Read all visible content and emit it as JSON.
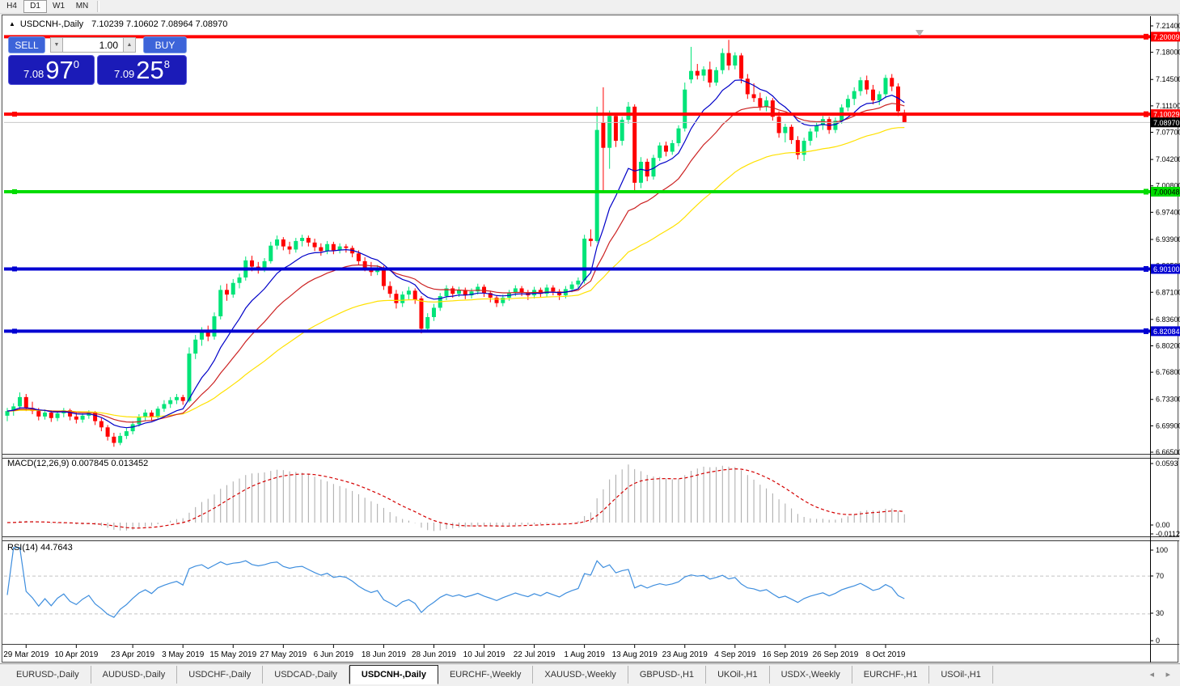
{
  "toolbar": {
    "timeframes": [
      {
        "label": "H4",
        "active": false
      },
      {
        "label": "D1",
        "active": true
      },
      {
        "label": "W1",
        "active": false
      },
      {
        "label": "MN",
        "active": false
      }
    ]
  },
  "chart": {
    "collapse_icon": "▲",
    "title_symbol": "USDCNH-,Daily",
    "title_ohlc": "7.10239 7.10602 7.08964 7.08970",
    "one_click": {
      "sell_label": "SELL",
      "buy_label": "BUY",
      "volume": "1.00",
      "spin_down_icon": "▼",
      "spin_up_icon": "▲",
      "sell_small": "7.08",
      "sell_big": "97",
      "sell_sup": "0",
      "buy_small": "7.09",
      "buy_big": "25",
      "buy_sup": "8"
    }
  },
  "chart_data": {
    "type": "candlestick",
    "symbol": "USDCNH-",
    "timeframe": "Daily",
    "current_ohlc": {
      "open": 7.10239,
      "high": 7.10602,
      "low": 7.08964,
      "close": 7.0897
    },
    "price_axis": {
      "max": 7.214,
      "min": 6.665,
      "ticks": [
        7.214,
        7.18,
        7.145,
        7.111,
        7.077,
        7.042,
        7.008,
        6.974,
        6.939,
        6.905,
        6.871,
        6.836,
        6.802,
        6.768,
        6.733,
        6.699,
        6.665
      ]
    },
    "hlines": [
      {
        "price": 7.20009,
        "color": "#FF0000",
        "thickness": 4,
        "label": "7.20009",
        "text": "#FFFFFF",
        "left_marker": false
      },
      {
        "price": 7.10029,
        "color": "#FF0000",
        "thickness": 4,
        "label": "7.10029",
        "text": "#FFFFFF",
        "left_marker": true
      },
      {
        "price": 7.0897,
        "color": "#C8C8C8",
        "thickness": 1,
        "label": "7.08970",
        "box": "#000000",
        "text": "#FFFFFF",
        "left_marker": false,
        "is_price_line": true
      },
      {
        "price": 7.00048,
        "color": "#00DC00",
        "thickness": 4,
        "label": "7.00048",
        "text": "#000000",
        "left_marker": true
      },
      {
        "price": 6.901,
        "color": "#0000D2",
        "thickness": 4,
        "label": "6.90100",
        "text": "#FFFFFF",
        "left_marker": true
      },
      {
        "price": 6.82084,
        "color": "#0000D2",
        "thickness": 4,
        "label": "6.82084",
        "text": "#FFFFFF",
        "left_marker": true
      }
    ],
    "colors": {
      "bull": "#00E478",
      "bear": "#FF0000",
      "ma_fast": "#0000C8",
      "ma_mid": "#CC2222",
      "ma_slow": "#FFE100",
      "macd_hist": "#A8A8A8",
      "macd_signal": "#D40000",
      "rsi_line": "#3E8EDE"
    },
    "ma_periods": [
      10,
      20,
      45
    ],
    "x_labels": [
      {
        "i": 3,
        "label": "29 Mar 2019"
      },
      {
        "i": 11,
        "label": "10 Apr 2019"
      },
      {
        "i": 20,
        "label": "23 Apr 2019"
      },
      {
        "i": 28,
        "label": "3 May 2019"
      },
      {
        "i": 36,
        "label": "15 May 2019"
      },
      {
        "i": 44,
        "label": "27 May 2019"
      },
      {
        "i": 52,
        "label": "6 Jun 2019"
      },
      {
        "i": 60,
        "label": "18 Jun 2019"
      },
      {
        "i": 68,
        "label": "28 Jun 2019"
      },
      {
        "i": 76,
        "label": "10 Jul 2019"
      },
      {
        "i": 84,
        "label": "22 Jul 2019"
      },
      {
        "i": 92,
        "label": "1 Aug 2019"
      },
      {
        "i": 100,
        "label": "13 Aug 2019"
      },
      {
        "i": 108,
        "label": "23 Aug 2019"
      },
      {
        "i": 116,
        "label": "4 Sep 2019"
      },
      {
        "i": 124,
        "label": "16 Sep 2019"
      },
      {
        "i": 132,
        "label": "26 Sep 2019"
      },
      {
        "i": 140,
        "label": "8 Oct 2019"
      }
    ],
    "macd": {
      "label": "MACD(12,26,9) 0.007845 0.013452",
      "fast": 12,
      "slow": 26,
      "signal_period": 9,
      "value": 0.007845,
      "signal_value": 0.013452,
      "axis": [
        "0.0593",
        "0.00",
        "-0.01128"
      ]
    },
    "rsi": {
      "label": "RSI(14) 44.7643",
      "period": 14,
      "value": 44.7643,
      "axis": [
        "100",
        "70",
        "30",
        "0"
      ],
      "levels": [
        70,
        30
      ]
    },
    "candles": [
      [
        6.712,
        6.722,
        6.705,
        6.718
      ],
      [
        6.718,
        6.728,
        6.712,
        6.724
      ],
      [
        6.724,
        6.742,
        6.72,
        6.736
      ],
      [
        6.736,
        6.74,
        6.718,
        6.722
      ],
      [
        6.722,
        6.73,
        6.714,
        6.718
      ],
      [
        6.718,
        6.722,
        6.706,
        6.711
      ],
      [
        6.711,
        6.72,
        6.707,
        6.716
      ],
      [
        6.716,
        6.719,
        6.704,
        6.709
      ],
      [
        6.709,
        6.718,
        6.705,
        6.715
      ],
      [
        6.715,
        6.722,
        6.71,
        6.719
      ],
      [
        6.719,
        6.721,
        6.706,
        6.711
      ],
      [
        6.711,
        6.716,
        6.702,
        6.707
      ],
      [
        6.707,
        6.715,
        6.703,
        6.712
      ],
      [
        6.712,
        6.719,
        6.708,
        6.716
      ],
      [
        6.716,
        6.718,
        6.7,
        6.705
      ],
      [
        6.705,
        6.709,
        6.692,
        6.697
      ],
      [
        6.697,
        6.7,
        6.68,
        6.685
      ],
      [
        6.685,
        6.69,
        6.672,
        6.677
      ],
      [
        6.677,
        6.69,
        6.674,
        6.686
      ],
      [
        6.686,
        6.696,
        6.682,
        6.692
      ],
      [
        6.692,
        6.705,
        6.688,
        6.701
      ],
      [
        6.701,
        6.714,
        6.698,
        6.71
      ],
      [
        6.71,
        6.72,
        6.706,
        6.716
      ],
      [
        6.716,
        6.719,
        6.705,
        6.71
      ],
      [
        6.71,
        6.724,
        6.707,
        6.721
      ],
      [
        6.721,
        6.732,
        6.717,
        6.727
      ],
      [
        6.727,
        6.736,
        6.722,
        6.732
      ],
      [
        6.732,
        6.74,
        6.727,
        6.736
      ],
      [
        6.736,
        6.739,
        6.726,
        6.731
      ],
      [
        6.731,
        6.8,
        6.729,
        6.792
      ],
      [
        6.792,
        6.816,
        6.785,
        6.81
      ],
      [
        6.81,
        6.826,
        6.802,
        6.821
      ],
      [
        6.821,
        6.828,
        6.808,
        6.814
      ],
      [
        6.814,
        6.845,
        6.81,
        6.84
      ],
      [
        6.84,
        6.88,
        6.836,
        6.874
      ],
      [
        6.874,
        6.882,
        6.86,
        6.868
      ],
      [
        6.868,
        6.888,
        6.864,
        6.883
      ],
      [
        6.883,
        6.895,
        6.876,
        6.89
      ],
      [
        6.89,
        6.917,
        6.886,
        6.912
      ],
      [
        6.912,
        6.918,
        6.898,
        6.904
      ],
      [
        6.904,
        6.91,
        6.895,
        6.901
      ],
      [
        6.901,
        6.915,
        6.897,
        6.911
      ],
      [
        6.911,
        6.936,
        6.908,
        6.931
      ],
      [
        6.931,
        6.944,
        6.926,
        6.939
      ],
      [
        6.939,
        6.942,
        6.925,
        6.93
      ],
      [
        6.93,
        6.936,
        6.92,
        6.926
      ],
      [
        6.926,
        6.941,
        6.922,
        6.937
      ],
      [
        6.937,
        6.945,
        6.93,
        6.941
      ],
      [
        6.941,
        6.944,
        6.93,
        6.935
      ],
      [
        6.935,
        6.94,
        6.924,
        6.929
      ],
      [
        6.929,
        6.934,
        6.918,
        6.924
      ],
      [
        6.924,
        6.937,
        6.92,
        6.933
      ],
      [
        6.933,
        6.936,
        6.92,
        6.925
      ],
      [
        6.925,
        6.934,
        6.921,
        6.93
      ],
      [
        6.93,
        6.933,
        6.922,
        6.928
      ],
      [
        6.928,
        6.931,
        6.916,
        6.921
      ],
      [
        6.921,
        6.925,
        6.906,
        6.911
      ],
      [
        6.911,
        6.916,
        6.898,
        6.903
      ],
      [
        6.903,
        6.91,
        6.892,
        6.897
      ],
      [
        6.897,
        6.906,
        6.893,
        6.902
      ],
      [
        6.902,
        6.905,
        6.874,
        6.879
      ],
      [
        6.879,
        6.885,
        6.864,
        6.869
      ],
      [
        6.869,
        6.874,
        6.85,
        6.857
      ],
      [
        6.857,
        6.872,
        6.852,
        6.868
      ],
      [
        6.868,
        6.878,
        6.862,
        6.873
      ],
      [
        6.873,
        6.876,
        6.856,
        6.861
      ],
      [
        6.863,
        6.866,
        6.818,
        6.824
      ],
      [
        6.824,
        6.844,
        6.82,
        6.839
      ],
      [
        6.839,
        6.856,
        6.834,
        6.851
      ],
      [
        6.851,
        6.87,
        6.847,
        6.866
      ],
      [
        6.866,
        6.88,
        6.861,
        6.876
      ],
      [
        6.876,
        6.879,
        6.864,
        6.869
      ],
      [
        6.869,
        6.878,
        6.865,
        6.874
      ],
      [
        6.874,
        6.877,
        6.862,
        6.867
      ],
      [
        6.867,
        6.876,
        6.863,
        6.872
      ],
      [
        6.872,
        6.882,
        6.868,
        6.878
      ],
      [
        6.878,
        6.881,
        6.865,
        6.87
      ],
      [
        6.87,
        6.873,
        6.858,
        6.864
      ],
      [
        6.864,
        6.867,
        6.852,
        6.857
      ],
      [
        6.857,
        6.868,
        6.853,
        6.864
      ],
      [
        6.864,
        6.874,
        6.86,
        6.87
      ],
      [
        6.87,
        6.88,
        6.866,
        6.876
      ],
      [
        6.876,
        6.879,
        6.866,
        6.871
      ],
      [
        6.871,
        6.874,
        6.861,
        6.867
      ],
      [
        6.867,
        6.878,
        6.863,
        6.874
      ],
      [
        6.874,
        6.877,
        6.864,
        6.869
      ],
      [
        6.869,
        6.881,
        6.865,
        6.877
      ],
      [
        6.877,
        6.88,
        6.867,
        6.872
      ],
      [
        6.872,
        6.875,
        6.861,
        6.867
      ],
      [
        6.867,
        6.879,
        6.863,
        6.875
      ],
      [
        6.875,
        6.885,
        6.871,
        6.881
      ],
      [
        6.881,
        6.89,
        6.876,
        6.886
      ],
      [
        6.886,
        6.945,
        6.882,
        6.94
      ],
      [
        6.94,
        6.952,
        6.93,
        6.937
      ],
      [
        6.937,
        7.11,
        6.935,
        7.08
      ],
      [
        7.09,
        7.135,
        6.999,
        7.057
      ],
      [
        7.057,
        7.105,
        7.03,
        7.098
      ],
      [
        7.098,
        7.102,
        7.058,
        7.066
      ],
      [
        7.066,
        7.097,
        7.06,
        7.093
      ],
      [
        7.093,
        7.116,
        7.088,
        7.11
      ],
      [
        7.11,
        7.113,
        7.002,
        7.012
      ],
      [
        7.012,
        7.045,
        7.005,
        7.039
      ],
      [
        7.039,
        7.043,
        7.014,
        7.02
      ],
      [
        7.02,
        7.048,
        7.016,
        7.044
      ],
      [
        7.044,
        7.064,
        7.04,
        7.06
      ],
      [
        7.06,
        7.065,
        7.046,
        7.052
      ],
      [
        7.052,
        7.067,
        7.048,
        7.063
      ],
      [
        7.063,
        7.086,
        7.059,
        7.082
      ],
      [
        7.082,
        7.141,
        7.078,
        7.132
      ],
      [
        7.145,
        7.187,
        7.14,
        7.156
      ],
      [
        7.156,
        7.165,
        7.145,
        7.15
      ],
      [
        7.15,
        7.162,
        7.143,
        7.158
      ],
      [
        7.158,
        7.168,
        7.135,
        7.141
      ],
      [
        7.141,
        7.161,
        7.137,
        7.157
      ],
      [
        7.157,
        7.185,
        7.152,
        7.179
      ],
      [
        7.179,
        7.196,
        7.157,
        7.163
      ],
      [
        7.163,
        7.18,
        7.158,
        7.176
      ],
      [
        7.176,
        7.179,
        7.14,
        7.146
      ],
      [
        7.146,
        7.152,
        7.12,
        7.126
      ],
      [
        7.126,
        7.14,
        7.116,
        7.121
      ],
      [
        7.121,
        7.128,
        7.105,
        7.11
      ],
      [
        7.11,
        7.123,
        7.104,
        7.118
      ],
      [
        7.118,
        7.121,
        7.092,
        7.097
      ],
      [
        7.097,
        7.104,
        7.07,
        7.076
      ],
      [
        7.076,
        7.088,
        7.064,
        7.084
      ],
      [
        7.084,
        7.087,
        7.062,
        7.067
      ],
      [
        7.067,
        7.072,
        7.042,
        7.048
      ],
      [
        7.048,
        7.07,
        7.04,
        7.066
      ],
      [
        7.066,
        7.082,
        7.06,
        7.078
      ],
      [
        7.078,
        7.09,
        7.07,
        7.086
      ],
      [
        7.086,
        7.098,
        7.08,
        7.094
      ],
      [
        7.094,
        7.097,
        7.075,
        7.08
      ],
      [
        7.08,
        7.096,
        7.076,
        7.092
      ],
      [
        7.092,
        7.113,
        7.088,
        7.109
      ],
      [
        7.109,
        7.125,
        7.104,
        7.12
      ],
      [
        7.12,
        7.135,
        7.112,
        7.13
      ],
      [
        7.13,
        7.148,
        7.124,
        7.144
      ],
      [
        7.144,
        7.15,
        7.126,
        7.132
      ],
      [
        7.132,
        7.138,
        7.113,
        7.118
      ],
      [
        7.118,
        7.13,
        7.112,
        7.126
      ],
      [
        7.126,
        7.151,
        7.121,
        7.147
      ],
      [
        7.147,
        7.152,
        7.13,
        7.136
      ],
      [
        7.136,
        7.14,
        7.098,
        7.104
      ],
      [
        7.10239,
        7.10602,
        7.08964,
        7.0897
      ]
    ]
  },
  "tabs": {
    "items": [
      {
        "label": "EURUSD-,Daily",
        "active": false
      },
      {
        "label": "AUDUSD-,Daily",
        "active": false
      },
      {
        "label": "USDCHF-,Daily",
        "active": false
      },
      {
        "label": "USDCAD-,Daily",
        "active": false
      },
      {
        "label": "USDCNH-,Daily",
        "active": true
      },
      {
        "label": "EURCHF-,Weekly",
        "active": false
      },
      {
        "label": "XAUUSD-,Weekly",
        "active": false
      },
      {
        "label": "GBPUSD-,H1",
        "active": false
      },
      {
        "label": "UKOil-,H1",
        "active": false
      },
      {
        "label": "USDX-,Weekly",
        "active": false
      },
      {
        "label": "EURCHF-,H1",
        "active": false
      },
      {
        "label": "USOil-,H1",
        "active": false
      }
    ],
    "scroll_left_icon": "◂",
    "scroll_right_icon": "▸"
  }
}
